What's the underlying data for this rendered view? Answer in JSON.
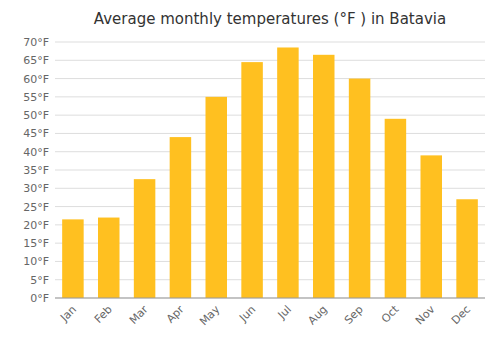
{
  "chart_data": {
    "type": "bar",
    "title": "Average monthly temperatures (°F ) in Batavia",
    "categories": [
      "Jan",
      "Feb",
      "Mar",
      "Apr",
      "May",
      "Jun",
      "Jul",
      "Aug",
      "Sep",
      "Oct",
      "Nov",
      "Dec"
    ],
    "values": [
      21.5,
      22.0,
      32.5,
      44.0,
      55.0,
      64.5,
      68.5,
      66.5,
      60.0,
      49.0,
      39.0,
      27.0
    ],
    "color": "#FFC020",
    "ylim": [
      0,
      70
    ],
    "yticks": [
      {
        "value": 0,
        "label": "0°F"
      },
      {
        "value": 5,
        "label": "5°F"
      },
      {
        "value": 10,
        "label": "10°F"
      },
      {
        "value": 15,
        "label": "15°F"
      },
      {
        "value": 20,
        "label": "20°F"
      },
      {
        "value": 25,
        "label": "25°F"
      },
      {
        "value": 30,
        "label": "30°F"
      },
      {
        "value": 35,
        "label": "35°F"
      },
      {
        "value": 40,
        "label": "40°F"
      },
      {
        "value": 45,
        "label": "45°F"
      },
      {
        "value": 50,
        "label": "50°F"
      },
      {
        "value": 55,
        "label": "55°F"
      },
      {
        "value": 60,
        "label": "60°F"
      },
      {
        "value": 65,
        "label": "65°F"
      },
      {
        "value": 70,
        "label": "70°F"
      }
    ],
    "grid": true
  }
}
